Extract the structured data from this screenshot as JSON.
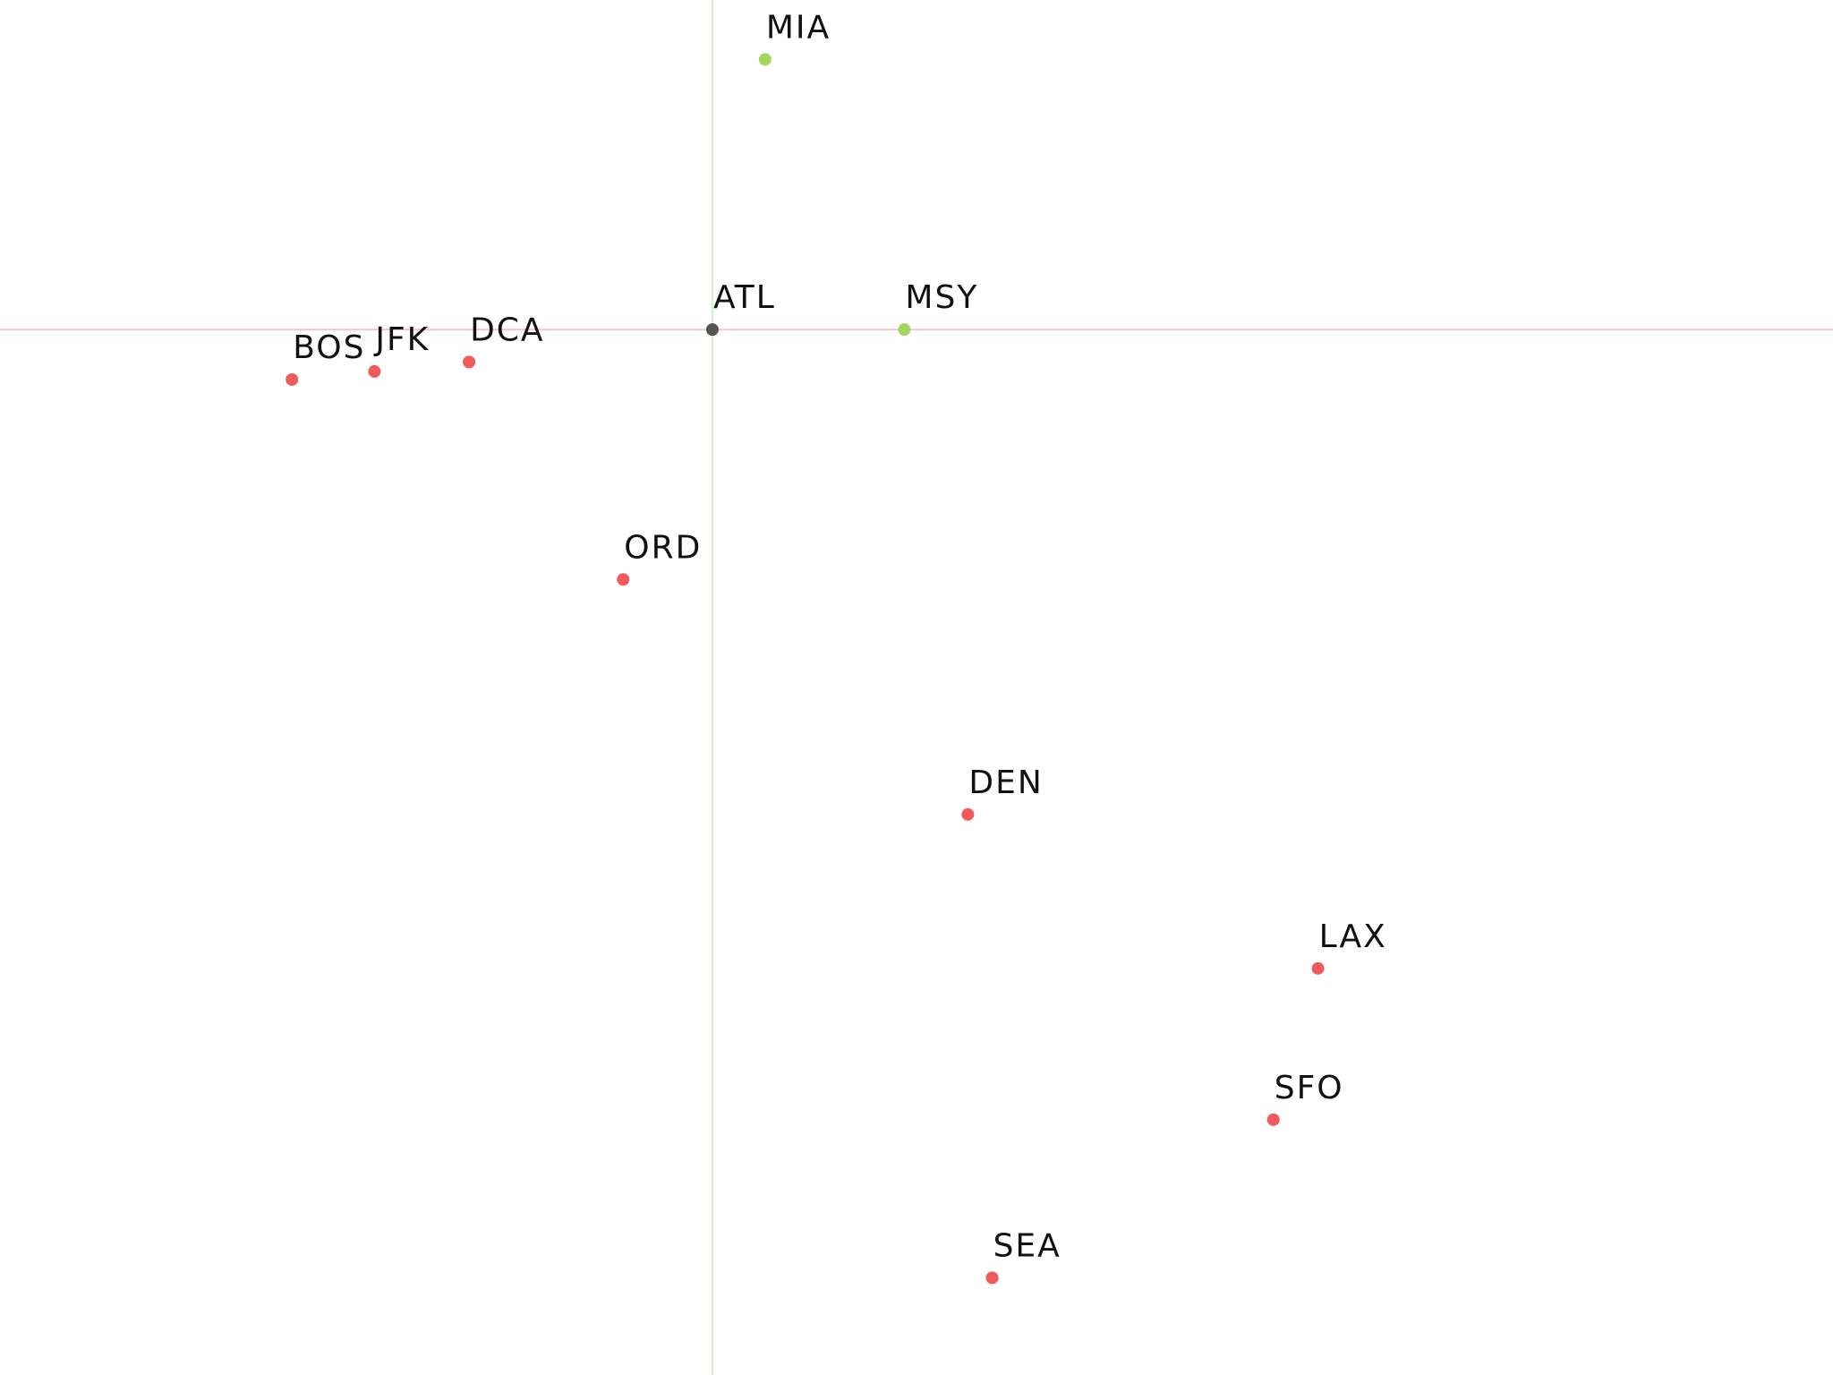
{
  "chart_data": {
    "type": "scatter",
    "title": "",
    "xlabel": "",
    "ylabel": "",
    "grid": false,
    "xlim": [
      -3.83,
      9.73
    ],
    "ylim": [
      -7.74,
      2.44
    ],
    "reference_lines": {
      "horizontal": {
        "y": 0,
        "color": "#ffb3b3"
      },
      "vertical": {
        "x": 1.44,
        "color": "#c8eec0"
      }
    },
    "colors": {
      "center": "#555555",
      "group_a": "#a4d65e",
      "group_b": "#f05a5a"
    },
    "points": [
      {
        "label": "MIA",
        "x": 1.83,
        "y": 2.0,
        "group": "group_a"
      },
      {
        "label": "ATL",
        "x": 1.44,
        "y": 0.0,
        "group": "center"
      },
      {
        "label": "MSY",
        "x": 2.86,
        "y": 0.0,
        "group": "group_a"
      },
      {
        "label": "BOS",
        "x": -1.67,
        "y": -0.37,
        "group": "group_b"
      },
      {
        "label": "JFK",
        "x": -1.06,
        "y": -0.31,
        "group": "group_b"
      },
      {
        "label": "DCA",
        "x": -0.36,
        "y": -0.24,
        "group": "group_b"
      },
      {
        "label": "ORD",
        "x": 0.78,
        "y": -1.85,
        "group": "group_b"
      },
      {
        "label": "DEN",
        "x": 3.33,
        "y": -3.59,
        "group": "group_b"
      },
      {
        "label": "LAX",
        "x": 5.92,
        "y": -4.73,
        "group": "group_b"
      },
      {
        "label": "SFO",
        "x": 5.59,
        "y": -5.85,
        "group": "group_b"
      },
      {
        "label": "SEA",
        "x": 3.51,
        "y": -7.02,
        "group": "group_b"
      }
    ]
  }
}
